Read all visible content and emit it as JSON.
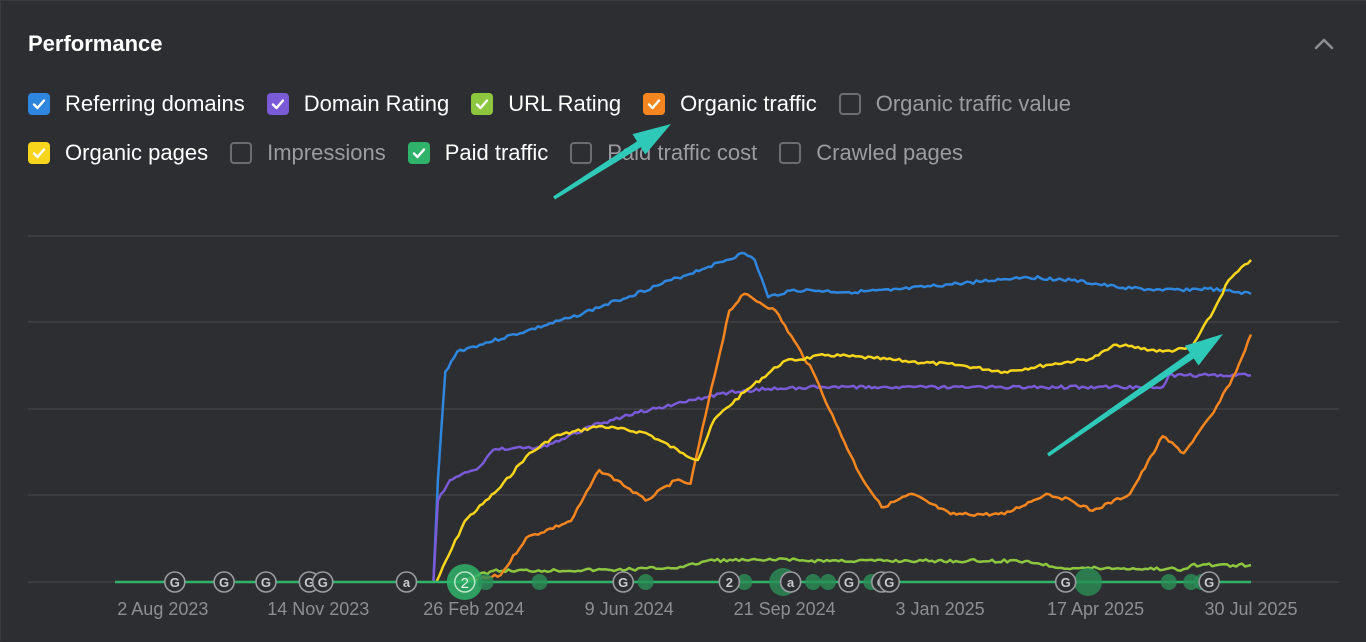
{
  "header": {
    "title": "Performance",
    "collapse_icon": "chevron-up-icon"
  },
  "legend": {
    "row1": [
      {
        "label": "Referring domains",
        "checked": true,
        "color": "#2f86de"
      },
      {
        "label": "Domain Rating",
        "checked": true,
        "color": "#7a5ad6"
      },
      {
        "label": "URL Rating",
        "checked": true,
        "color": "#8dc63f"
      },
      {
        "label": "Organic traffic",
        "checked": true,
        "color": "#f5861f"
      },
      {
        "label": "Organic traffic value",
        "checked": false,
        "color": "#6b6d72"
      }
    ],
    "row2": [
      {
        "label": "Organic pages",
        "checked": true,
        "color": "#f7d51d"
      },
      {
        "label": "Impressions",
        "checked": false,
        "color": "#6b6d72"
      },
      {
        "label": "Paid traffic",
        "checked": true,
        "color": "#2fb36a"
      },
      {
        "label": "Paid traffic cost",
        "checked": false,
        "color": "#6b6d72"
      },
      {
        "label": "Crawled pages",
        "checked": false,
        "color": "#6b6d72"
      }
    ]
  },
  "chart_data": {
    "type": "line",
    "title": "",
    "xlabel": "",
    "ylabel": "",
    "x_ticks": [
      "2 Aug 2023",
      "14 Nov 2023",
      "26 Feb 2024",
      "9 Jun 2024",
      "21 Sep 2024",
      "3 Jan 2025",
      "17 Apr 2025",
      "30 Jul 2025"
    ],
    "x_range": [
      "2023-07-01",
      "2025-07-30"
    ],
    "y_relative_range": [
      0,
      100
    ],
    "grid": true,
    "series": [
      {
        "name": "Referring domains",
        "color": "#2f86de",
        "points": [
          [
            "2024-01-30",
            0
          ],
          [
            "2024-02-02",
            30
          ],
          [
            "2024-02-07",
            62
          ],
          [
            "2024-02-15",
            68
          ],
          [
            "2024-03-01",
            70
          ],
          [
            "2024-04-01",
            74
          ],
          [
            "2024-05-01",
            78
          ],
          [
            "2024-06-01",
            83
          ],
          [
            "2024-07-01",
            88
          ],
          [
            "2024-08-01",
            93
          ],
          [
            "2024-08-25",
            97
          ],
          [
            "2024-09-01",
            95
          ],
          [
            "2024-09-10",
            84
          ],
          [
            "2024-09-25",
            86
          ],
          [
            "2024-10-10",
            86
          ],
          [
            "2024-11-01",
            85.5
          ],
          [
            "2024-12-01",
            86
          ],
          [
            "2025-01-15",
            88
          ],
          [
            "2025-03-01",
            90
          ],
          [
            "2025-04-01",
            89
          ],
          [
            "2025-05-01",
            87
          ],
          [
            "2025-06-01",
            86
          ],
          [
            "2025-07-01",
            86.5
          ],
          [
            "2025-07-30",
            85
          ]
        ]
      },
      {
        "name": "Domain Rating",
        "color": "#7a5ad6",
        "points": [
          [
            "2024-01-30",
            0
          ],
          [
            "2024-02-02",
            24
          ],
          [
            "2024-02-10",
            30
          ],
          [
            "2024-03-01",
            34
          ],
          [
            "2024-03-10",
            39
          ],
          [
            "2024-04-15",
            40
          ],
          [
            "2024-05-15",
            46
          ],
          [
            "2024-06-15",
            50
          ],
          [
            "2024-07-15",
            53
          ],
          [
            "2024-08-15",
            56
          ],
          [
            "2024-09-10",
            57
          ],
          [
            "2024-10-15",
            57.5
          ],
          [
            "2025-02-01",
            57.5
          ],
          [
            "2025-06-01",
            57.5
          ],
          [
            "2025-06-05",
            61
          ],
          [
            "2025-07-30",
            61
          ]
        ]
      },
      {
        "name": "URL Rating",
        "color": "#8dc63f",
        "points": [
          [
            "2024-02-15",
            0
          ],
          [
            "2024-03-10",
            3.3
          ],
          [
            "2024-06-01",
            3.6
          ],
          [
            "2024-07-15",
            4.4
          ],
          [
            "2024-08-01",
            6.4
          ],
          [
            "2024-09-15",
            6.4
          ],
          [
            "2024-09-20",
            6.9
          ],
          [
            "2024-10-01",
            6.3
          ],
          [
            "2025-03-01",
            6.2
          ],
          [
            "2025-03-25",
            4.2
          ],
          [
            "2025-06-15",
            3.8
          ],
          [
            "2025-06-20",
            5.0
          ],
          [
            "2025-07-30",
            5.0
          ]
        ]
      },
      {
        "name": "Organic traffic",
        "color": "#f5861f",
        "points": [
          [
            "2024-02-20",
            0
          ],
          [
            "2024-03-15",
            2
          ],
          [
            "2024-04-01",
            13
          ],
          [
            "2024-05-01",
            18
          ],
          [
            "2024-05-20",
            33
          ],
          [
            "2024-06-01",
            30
          ],
          [
            "2024-06-20",
            24
          ],
          [
            "2024-07-10",
            30
          ],
          [
            "2024-07-20",
            29
          ],
          [
            "2024-08-01",
            53
          ],
          [
            "2024-08-15",
            80
          ],
          [
            "2024-08-25",
            85
          ],
          [
            "2024-09-15",
            80
          ],
          [
            "2024-10-10",
            62
          ],
          [
            "2024-10-25",
            47
          ],
          [
            "2024-11-10",
            32
          ],
          [
            "2024-11-25",
            22
          ],
          [
            "2024-12-15",
            26
          ],
          [
            "2025-01-10",
            20
          ],
          [
            "2025-02-15",
            20
          ],
          [
            "2025-03-15",
            26
          ],
          [
            "2025-04-01",
            24
          ],
          [
            "2025-04-15",
            21
          ],
          [
            "2025-05-10",
            26
          ],
          [
            "2025-06-01",
            43
          ],
          [
            "2025-06-15",
            38
          ],
          [
            "2025-07-05",
            50
          ],
          [
            "2025-07-20",
            62
          ],
          [
            "2025-07-30",
            73
          ]
        ]
      },
      {
        "name": "Organic pages",
        "color": "#f7d51d",
        "points": [
          [
            "2024-02-01",
            0
          ],
          [
            "2024-02-20",
            18
          ],
          [
            "2024-03-15",
            28
          ],
          [
            "2024-04-01",
            37
          ],
          [
            "2024-04-20",
            43
          ],
          [
            "2024-05-20",
            46
          ],
          [
            "2024-06-20",
            44
          ],
          [
            "2024-07-15",
            38
          ],
          [
            "2024-07-25",
            36
          ],
          [
            "2024-08-05",
            48
          ],
          [
            "2024-08-25",
            56
          ],
          [
            "2024-09-20",
            65
          ],
          [
            "2024-10-20",
            67
          ],
          [
            "2024-11-20",
            66
          ],
          [
            "2024-12-15",
            65
          ],
          [
            "2025-01-15",
            64
          ],
          [
            "2025-02-15",
            62
          ],
          [
            "2025-03-15",
            64
          ],
          [
            "2025-04-15",
            66
          ],
          [
            "2025-05-01",
            70
          ],
          [
            "2025-06-01",
            68
          ],
          [
            "2025-06-20",
            69
          ],
          [
            "2025-07-05",
            80
          ],
          [
            "2025-07-15",
            89
          ],
          [
            "2025-07-30",
            95
          ]
        ]
      },
      {
        "name": "Paid traffic",
        "color": "#2fb36a",
        "points": [
          [
            "2023-07-01",
            0
          ],
          [
            "2025-07-30",
            0
          ]
        ]
      }
    ],
    "event_markers": [
      {
        "date": "2023-08-10",
        "label": "G"
      },
      {
        "date": "2023-09-12",
        "label": "G"
      },
      {
        "date": "2023-10-10",
        "label": "G"
      },
      {
        "date": "2023-11-08",
        "label": "G"
      },
      {
        "date": "2023-11-17",
        "label": "G"
      },
      {
        "date": "2024-01-12",
        "label": "a"
      },
      {
        "date": "2024-06-05",
        "label": "G"
      },
      {
        "date": "2024-08-15",
        "label": "2"
      },
      {
        "date": "2024-09-25",
        "label": "a"
      },
      {
        "date": "2024-11-03",
        "label": "G"
      },
      {
        "date": "2024-11-25",
        "label": "G"
      },
      {
        "date": "2024-11-30",
        "label": "G"
      },
      {
        "date": "2025-03-28",
        "label": "G"
      },
      {
        "date": "2025-07-02",
        "label": "G"
      }
    ],
    "activity_dots": [
      {
        "date": "2024-02-20",
        "label": "2",
        "size": "large"
      },
      {
        "date": "2024-03-05",
        "size": "small"
      },
      {
        "date": "2024-04-10",
        "size": "small"
      },
      {
        "date": "2024-06-20",
        "size": "small"
      },
      {
        "date": "2024-08-25",
        "size": "small"
      },
      {
        "date": "2024-09-20",
        "size": "medium"
      },
      {
        "date": "2024-10-10",
        "size": "small"
      },
      {
        "date": "2024-10-20",
        "size": "small"
      },
      {
        "date": "2024-11-18",
        "size": "small"
      },
      {
        "date": "2025-04-12",
        "size": "medium"
      },
      {
        "date": "2025-06-05",
        "size": "small"
      },
      {
        "date": "2025-06-20",
        "size": "small"
      },
      {
        "date": "2025-06-27",
        "size": "small"
      }
    ],
    "annotations": [
      {
        "type": "arrow",
        "color": "#2ec9b8",
        "points_to": "Organic traffic legend item"
      },
      {
        "type": "arrow",
        "color": "#2ec9b8",
        "points_to": "recent rise of Organic pages and Organic traffic"
      }
    ]
  }
}
